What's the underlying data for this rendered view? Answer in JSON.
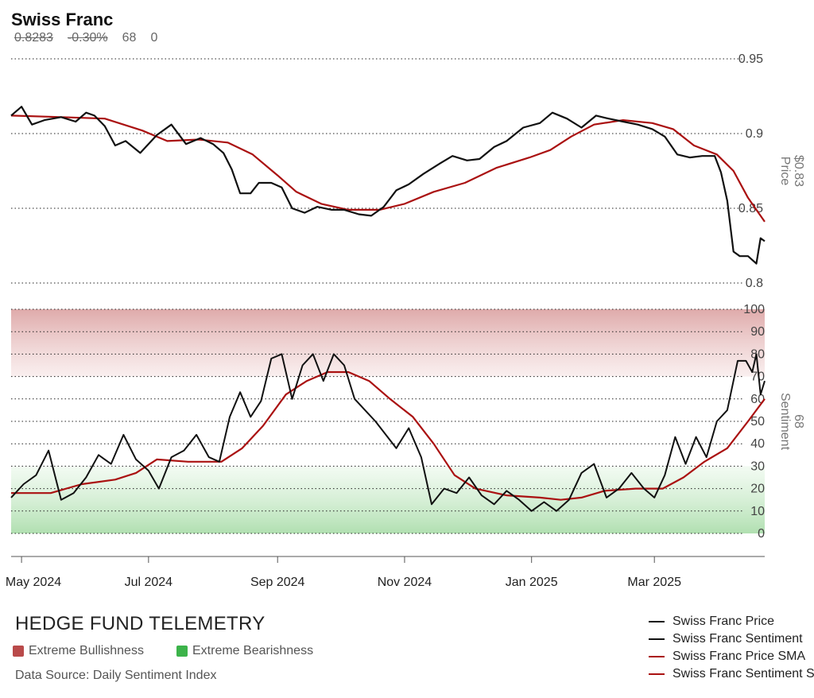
{
  "header": {
    "title": "Swiss Franc",
    "price": "0.8283",
    "change": "-0.30%",
    "sentiment": "68",
    "extra": "0"
  },
  "brand": "HEDGE FUND TELEMETRY",
  "extreme_bull_label": "Extreme Bullishness",
  "extreme_bear_label": "Extreme Bearishness",
  "source": "Data Source: Daily Sentiment Index",
  "colors": {
    "price_line": "#111111",
    "sma_line": "#aa1111",
    "bull_zone": "#b94a4a",
    "bear_zone": "#3cb34a"
  },
  "chart_data": {
    "type": "line",
    "x_ticks": [
      "May 2024",
      "Jul 2024",
      "Sep 2024",
      "Nov 2024",
      "Jan 2025",
      "Mar 2025"
    ],
    "x_range": [
      "2024-04-26",
      "2025-04-23"
    ],
    "price_panel": {
      "ylabel": "Price",
      "ylabel_value": "$0.83",
      "yticks": [
        "0.8",
        "0.85",
        "0.9",
        "0.95"
      ],
      "ylim": [
        0.8,
        0.95
      ],
      "series": [
        {
          "name": "Swiss Franc Price",
          "color": "#111111",
          "points": [
            [
              "2024-04-26",
              0.912
            ],
            [
              "2024-05-01",
              0.918
            ],
            [
              "2024-05-06",
              0.906
            ],
            [
              "2024-05-12",
              0.909
            ],
            [
              "2024-05-20",
              0.911
            ],
            [
              "2024-05-27",
              0.908
            ],
            [
              "2024-06-01",
              0.914
            ],
            [
              "2024-06-05",
              0.912
            ],
            [
              "2024-06-10",
              0.905
            ],
            [
              "2024-06-15",
              0.892
            ],
            [
              "2024-06-20",
              0.895
            ],
            [
              "2024-06-27",
              0.887
            ],
            [
              "2024-07-05",
              0.899
            ],
            [
              "2024-07-12",
              0.906
            ],
            [
              "2024-07-19",
              0.893
            ],
            [
              "2024-07-26",
              0.897
            ],
            [
              "2024-08-01",
              0.893
            ],
            [
              "2024-08-06",
              0.887
            ],
            [
              "2024-08-10",
              0.876
            ],
            [
              "2024-08-14",
              0.86
            ],
            [
              "2024-08-19",
              0.86
            ],
            [
              "2024-08-23",
              0.867
            ],
            [
              "2024-08-29",
              0.867
            ],
            [
              "2024-09-03",
              0.864
            ],
            [
              "2024-09-08",
              0.85
            ],
            [
              "2024-09-14",
              0.847
            ],
            [
              "2024-09-20",
              0.851
            ],
            [
              "2024-09-27",
              0.849
            ],
            [
              "2024-10-03",
              0.849
            ],
            [
              "2024-10-10",
              0.846
            ],
            [
              "2024-10-16",
              0.845
            ],
            [
              "2024-10-22",
              0.851
            ],
            [
              "2024-10-28",
              0.862
            ],
            [
              "2024-11-03",
              0.866
            ],
            [
              "2024-11-10",
              0.873
            ],
            [
              "2024-11-18",
              0.88
            ],
            [
              "2024-11-24",
              0.885
            ],
            [
              "2024-12-01",
              0.882
            ],
            [
              "2024-12-07",
              0.883
            ],
            [
              "2024-12-14",
              0.891
            ],
            [
              "2024-12-20",
              0.895
            ],
            [
              "2024-12-28",
              0.904
            ],
            [
              "2025-01-05",
              0.907
            ],
            [
              "2025-01-11",
              0.914
            ],
            [
              "2025-01-18",
              0.91
            ],
            [
              "2025-01-25",
              0.904
            ],
            [
              "2025-02-01",
              0.912
            ],
            [
              "2025-02-07",
              0.91
            ],
            [
              "2025-02-14",
              0.908
            ],
            [
              "2025-02-21",
              0.906
            ],
            [
              "2025-02-28",
              0.903
            ],
            [
              "2025-03-06",
              0.898
            ],
            [
              "2025-03-12",
              0.886
            ],
            [
              "2025-03-18",
              0.884
            ],
            [
              "2025-03-24",
              0.885
            ],
            [
              "2025-03-30",
              0.885
            ],
            [
              "2025-04-02",
              0.874
            ],
            [
              "2025-04-05",
              0.855
            ],
            [
              "2025-04-08",
              0.821
            ],
            [
              "2025-04-11",
              0.818
            ],
            [
              "2025-04-15",
              0.818
            ],
            [
              "2025-04-19",
              0.813
            ],
            [
              "2025-04-21",
              0.83
            ],
            [
              "2025-04-23",
              0.828
            ]
          ]
        },
        {
          "name": "Swiss Franc Price SMA",
          "color": "#aa1111",
          "points": [
            [
              "2024-04-26",
              0.912
            ],
            [
              "2024-05-20",
              0.911
            ],
            [
              "2024-06-10",
              0.91
            ],
            [
              "2024-06-28",
              0.902
            ],
            [
              "2024-07-10",
              0.895
            ],
            [
              "2024-07-25",
              0.896
            ],
            [
              "2024-08-08",
              0.894
            ],
            [
              "2024-08-20",
              0.886
            ],
            [
              "2024-09-01",
              0.872
            ],
            [
              "2024-09-10",
              0.861
            ],
            [
              "2024-09-22",
              0.853
            ],
            [
              "2024-10-05",
              0.849
            ],
            [
              "2024-10-20",
              0.849
            ],
            [
              "2024-11-01",
              0.853
            ],
            [
              "2024-11-15",
              0.861
            ],
            [
              "2024-11-30",
              0.867
            ],
            [
              "2024-12-15",
              0.877
            ],
            [
              "2024-12-31",
              0.884
            ],
            [
              "2025-01-10",
              0.889
            ],
            [
              "2025-01-20",
              0.898
            ],
            [
              "2025-01-31",
              0.906
            ],
            [
              "2025-02-14",
              0.909
            ],
            [
              "2025-02-28",
              0.907
            ],
            [
              "2025-03-10",
              0.903
            ],
            [
              "2025-03-20",
              0.892
            ],
            [
              "2025-03-31",
              0.886
            ],
            [
              "2025-04-08",
              0.875
            ],
            [
              "2025-04-15",
              0.857
            ],
            [
              "2025-04-23",
              0.841
            ]
          ]
        }
      ]
    },
    "sentiment_panel": {
      "ylabel": "Sentiment",
      "ylabel_value": "68",
      "yticks": [
        0,
        10,
        20,
        30,
        40,
        50,
        60,
        70,
        80,
        90,
        100
      ],
      "ylim": [
        0,
        100
      ],
      "extreme_bullish_zone": [
        70,
        100
      ],
      "extreme_bearish_zone": [
        0,
        30
      ],
      "series": [
        {
          "name": "Swiss Franc Sentiment",
          "color": "#111111",
          "points": [
            [
              "2024-04-26",
              16
            ],
            [
              "2024-05-02",
              22
            ],
            [
              "2024-05-08",
              26
            ],
            [
              "2024-05-14",
              37
            ],
            [
              "2024-05-20",
              15
            ],
            [
              "2024-05-26",
              18
            ],
            [
              "2024-06-01",
              25
            ],
            [
              "2024-06-07",
              35
            ],
            [
              "2024-06-13",
              31
            ],
            [
              "2024-06-19",
              44
            ],
            [
              "2024-06-25",
              33
            ],
            [
              "2024-07-01",
              28
            ],
            [
              "2024-07-06",
              20
            ],
            [
              "2024-07-12",
              34
            ],
            [
              "2024-07-18",
              37
            ],
            [
              "2024-07-24",
              44
            ],
            [
              "2024-07-30",
              34
            ],
            [
              "2024-08-04",
              32
            ],
            [
              "2024-08-09",
              52
            ],
            [
              "2024-08-14",
              63
            ],
            [
              "2024-08-19",
              52
            ],
            [
              "2024-08-24",
              59
            ],
            [
              "2024-08-29",
              78
            ],
            [
              "2024-09-03",
              80
            ],
            [
              "2024-09-08",
              60
            ],
            [
              "2024-09-13",
              75
            ],
            [
              "2024-09-18",
              80
            ],
            [
              "2024-09-23",
              68
            ],
            [
              "2024-09-28",
              80
            ],
            [
              "2024-10-03",
              75
            ],
            [
              "2024-10-08",
              60
            ],
            [
              "2024-10-13",
              55
            ],
            [
              "2024-10-18",
              50
            ],
            [
              "2024-10-23",
              44
            ],
            [
              "2024-10-28",
              38
            ],
            [
              "2024-11-03",
              47
            ],
            [
              "2024-11-09",
              34
            ],
            [
              "2024-11-14",
              13
            ],
            [
              "2024-11-20",
              20
            ],
            [
              "2024-11-26",
              18
            ],
            [
              "2024-12-02",
              25
            ],
            [
              "2024-12-08",
              17
            ],
            [
              "2024-12-14",
              13
            ],
            [
              "2024-12-20",
              19
            ],
            [
              "2024-12-26",
              15
            ],
            [
              "2025-01-01",
              10
            ],
            [
              "2025-01-07",
              14
            ],
            [
              "2025-01-13",
              10
            ],
            [
              "2025-01-19",
              15
            ],
            [
              "2025-01-25",
              27
            ],
            [
              "2025-01-31",
              31
            ],
            [
              "2025-02-06",
              16
            ],
            [
              "2025-02-12",
              20
            ],
            [
              "2025-02-18",
              27
            ],
            [
              "2025-02-24",
              20
            ],
            [
              "2025-03-01",
              16
            ],
            [
              "2025-03-06",
              26
            ],
            [
              "2025-03-11",
              43
            ],
            [
              "2025-03-16",
              31
            ],
            [
              "2025-03-21",
              43
            ],
            [
              "2025-03-26",
              34
            ],
            [
              "2025-03-31",
              50
            ],
            [
              "2025-04-05",
              55
            ],
            [
              "2025-04-10",
              77
            ],
            [
              "2025-04-14",
              77
            ],
            [
              "2025-04-17",
              72
            ],
            [
              "2025-04-19",
              80
            ],
            [
              "2025-04-21",
              62
            ],
            [
              "2025-04-23",
              68
            ]
          ]
        },
        {
          "name": "Swiss Franc Sentiment SMA",
          "color": "#aa1111",
          "points": [
            [
              "2024-04-26",
              18
            ],
            [
              "2024-05-15",
              18
            ],
            [
              "2024-05-30",
              22
            ],
            [
              "2024-06-15",
              24
            ],
            [
              "2024-06-25",
              27
            ],
            [
              "2024-07-05",
              33
            ],
            [
              "2024-07-20",
              32
            ],
            [
              "2024-08-05",
              32
            ],
            [
              "2024-08-15",
              38
            ],
            [
              "2024-08-25",
              48
            ],
            [
              "2024-09-05",
              62
            ],
            [
              "2024-09-15",
              68
            ],
            [
              "2024-09-25",
              72
            ],
            [
              "2024-10-05",
              72
            ],
            [
              "2024-10-15",
              68
            ],
            [
              "2024-10-25",
              60
            ],
            [
              "2024-11-05",
              52
            ],
            [
              "2024-11-15",
              40
            ],
            [
              "2024-11-25",
              26
            ],
            [
              "2024-12-05",
              20
            ],
            [
              "2024-12-20",
              17
            ],
            [
              "2025-01-05",
              16
            ],
            [
              "2025-01-15",
              15
            ],
            [
              "2025-01-25",
              16
            ],
            [
              "2025-02-05",
              19
            ],
            [
              "2025-02-20",
              20
            ],
            [
              "2025-03-05",
              20
            ],
            [
              "2025-03-15",
              25
            ],
            [
              "2025-03-25",
              32
            ],
            [
              "2025-04-05",
              38
            ],
            [
              "2025-04-15",
              50
            ],
            [
              "2025-04-23",
              60
            ]
          ]
        }
      ]
    }
  }
}
